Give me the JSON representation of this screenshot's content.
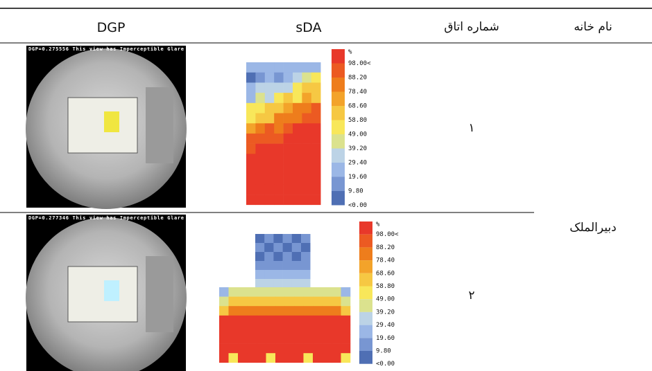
{
  "table": {
    "headers": [
      "DGP",
      "sDA",
      "شماره اتاق",
      "نام خانه"
    ],
    "house": "دبیرالملک",
    "rows": [
      {
        "room": "١",
        "dgp_caption": "DGP=0.275556 This view has Imperceptible Glare",
        "sda_legend": [
          "%",
          "98.00<",
          "88.20",
          "78.40",
          "68.60",
          "58.80",
          "49.00",
          "39.20",
          "29.40",
          "19.60",
          "9.80",
          "<0.00"
        ]
      },
      {
        "room": "٢",
        "dgp_caption": "DGP=0.277346 This view has Imperceptible Glare",
        "sda_legend": [
          "%",
          "98.00<",
          "88.20",
          "78.40",
          "68.60",
          "58.80",
          "49.00",
          "39.20",
          "29.40",
          "19.60",
          "9.80",
          "<0.00"
        ]
      }
    ]
  }
}
